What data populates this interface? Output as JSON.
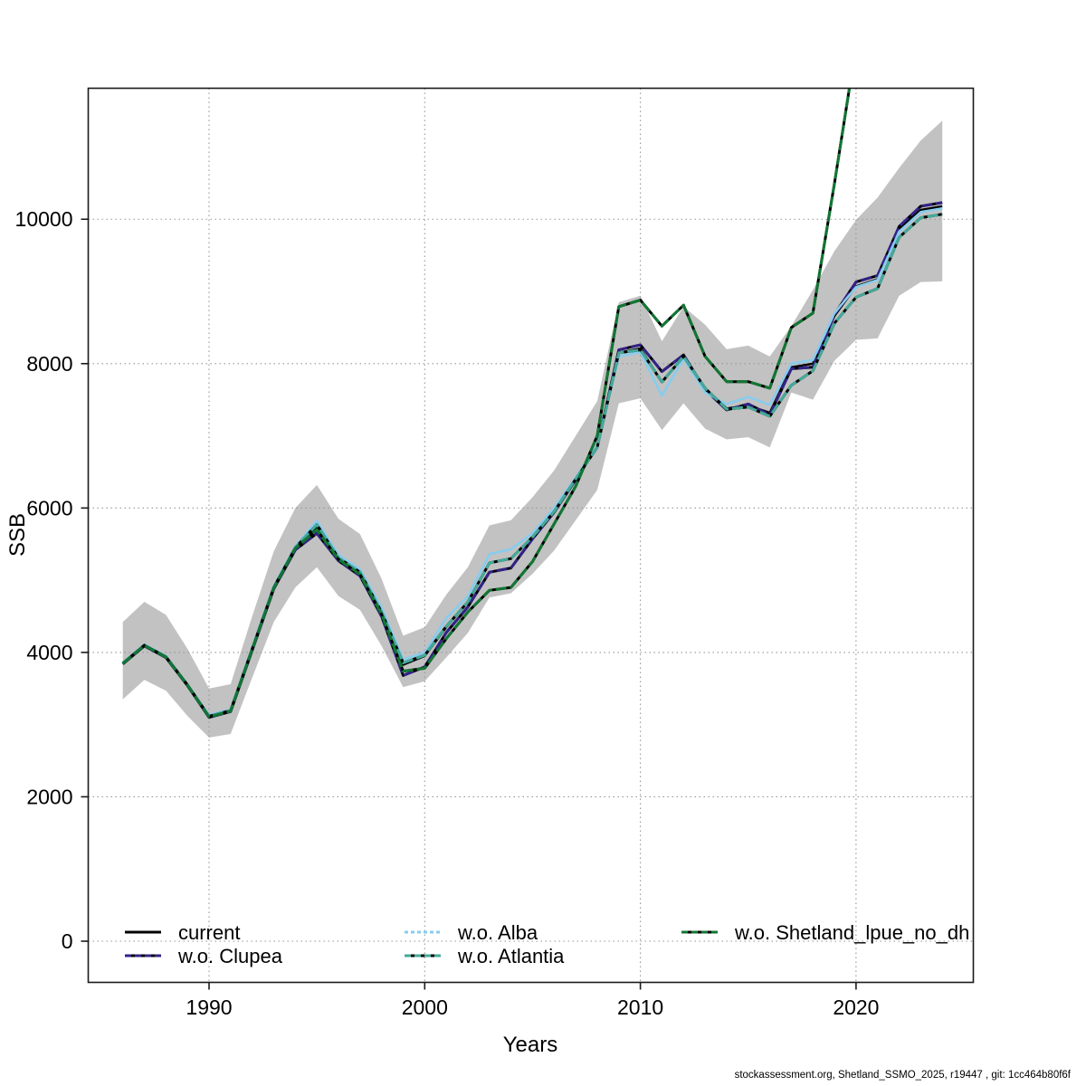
{
  "footer": "stockassessment.org, Shetland_SSMO_2025, r19447 , git: 1cc464b80f6f",
  "legend": {
    "items": [
      {
        "label": "current"
      },
      {
        "label": "w.o. Clupea"
      },
      {
        "label": "w.o. Alba"
      },
      {
        "label": "w.o. Atlantia"
      },
      {
        "label": "w.o. Shetland_lpue_no_dh"
      }
    ]
  },
  "chart_data": {
    "type": "line",
    "title": "",
    "xlabel": "Years",
    "ylabel": "SSB",
    "x": [
      1986,
      1987,
      1988,
      1989,
      1990,
      1991,
      1992,
      1993,
      1994,
      1995,
      1996,
      1997,
      1998,
      1999,
      2000,
      2001,
      2002,
      2003,
      2004,
      2005,
      2006,
      2007,
      2008,
      2009,
      2010,
      2011,
      2012,
      2013,
      2014,
      2015,
      2016,
      2017,
      2018,
      2019,
      2020,
      2021,
      2022,
      2023,
      2024
    ],
    "x_ticks": [
      1990,
      2000,
      2010,
      2020
    ],
    "y_ticks": [
      0,
      2000,
      4000,
      6000,
      8000,
      10000
    ],
    "xlim": [
      1984.4,
      2025.4
    ],
    "ylim": [
      -560,
      11820
    ],
    "grid": "dotted",
    "legend_position": "bottom-inside",
    "band": {
      "name": "current run confidence interval",
      "color": "#c2c2c2",
      "upper": [
        4420,
        4700,
        4520,
        4050,
        3500,
        3560,
        4500,
        5400,
        6000,
        6320,
        5850,
        5640,
        5020,
        4230,
        4350,
        4800,
        5180,
        5760,
        5830,
        6150,
        6520,
        7000,
        7480,
        8850,
        8940,
        8310,
        8790,
        8540,
        8200,
        8250,
        8100,
        8520,
        9020,
        9560,
        9990,
        10300,
        10710,
        11090,
        11365
      ],
      "lower": [
        3350,
        3620,
        3470,
        3120,
        2820,
        2870,
        3650,
        4420,
        4900,
        5180,
        4780,
        4590,
        4090,
        3520,
        3600,
        3930,
        4270,
        4760,
        4820,
        5090,
        5410,
        5830,
        6250,
        7450,
        7520,
        7080,
        7450,
        7100,
        6950,
        6980,
        6840,
        7600,
        7500,
        8040,
        8330,
        8350,
        8940,
        9130,
        9140
      ]
    },
    "series": [
      {
        "name": "current",
        "color": "#000000",
        "values": [
          3850,
          4100,
          3940,
          3550,
          3110,
          3190,
          4050,
          4900,
          5450,
          5720,
          5300,
          5100,
          4550,
          3830,
          3950,
          4350,
          4700,
          5240,
          5300,
          5600,
          5950,
          6400,
          6850,
          8150,
          8210,
          7745,
          8100,
          7650,
          7380,
          7420,
          7320,
          7950,
          8000,
          8660,
          9070,
          9170,
          9870,
          10130,
          10180
        ]
      },
      {
        "name": "w.o. Clupea",
        "color": "#332288",
        "values": [
          3840,
          4090,
          3930,
          3540,
          3100,
          3180,
          4030,
          4880,
          5420,
          5650,
          5270,
          5060,
          4500,
          3680,
          3800,
          4275,
          4630,
          5110,
          5170,
          5575,
          5940,
          6390,
          6850,
          8190,
          8260,
          7890,
          8120,
          7640,
          7360,
          7440,
          7290,
          7930,
          7950,
          8680,
          9130,
          9220,
          9900,
          10180,
          10230
        ]
      },
      {
        "name": "w.o. Alba",
        "color": "#88CCEE",
        "values": [
          3860,
          4110,
          3950,
          3560,
          3130,
          3210,
          4070,
          4920,
          5470,
          5820,
          5350,
          5150,
          4620,
          3900,
          4000,
          4475,
          4780,
          5360,
          5430,
          5650,
          6000,
          6420,
          6870,
          8100,
          8160,
          7555,
          8070,
          7600,
          7440,
          7540,
          7430,
          8000,
          8050,
          8700,
          9060,
          9160,
          9830,
          10100,
          10150
        ]
      },
      {
        "name": "w.o. Atlantia",
        "color": "#44AA99",
        "values": [
          3850,
          4100,
          3940,
          3550,
          3115,
          3195,
          4050,
          4900,
          5450,
          5770,
          5310,
          5110,
          4560,
          3855,
          3960,
          4360,
          4700,
          5240,
          5300,
          5600,
          5950,
          6400,
          6840,
          8150,
          8190,
          7745,
          8100,
          7660,
          7370,
          7400,
          7270,
          7700,
          7900,
          8560,
          8920,
          9040,
          9750,
          10020,
          10070
        ]
      },
      {
        "name": "w.o. Shetland_lpue_no_dh",
        "color": "#117733",
        "values": [
          3845,
          4095,
          3935,
          3545,
          3105,
          3185,
          4040,
          4890,
          5440,
          5700,
          5290,
          5080,
          4530,
          3740,
          3780,
          4190,
          4560,
          4860,
          4900,
          5260,
          5780,
          6300,
          7000,
          8790,
          8880,
          8520,
          8810,
          8100,
          7750,
          7750,
          7660,
          8500,
          8700,
          10500,
          12400,
          null,
          null,
          null,
          null
        ]
      }
    ]
  }
}
